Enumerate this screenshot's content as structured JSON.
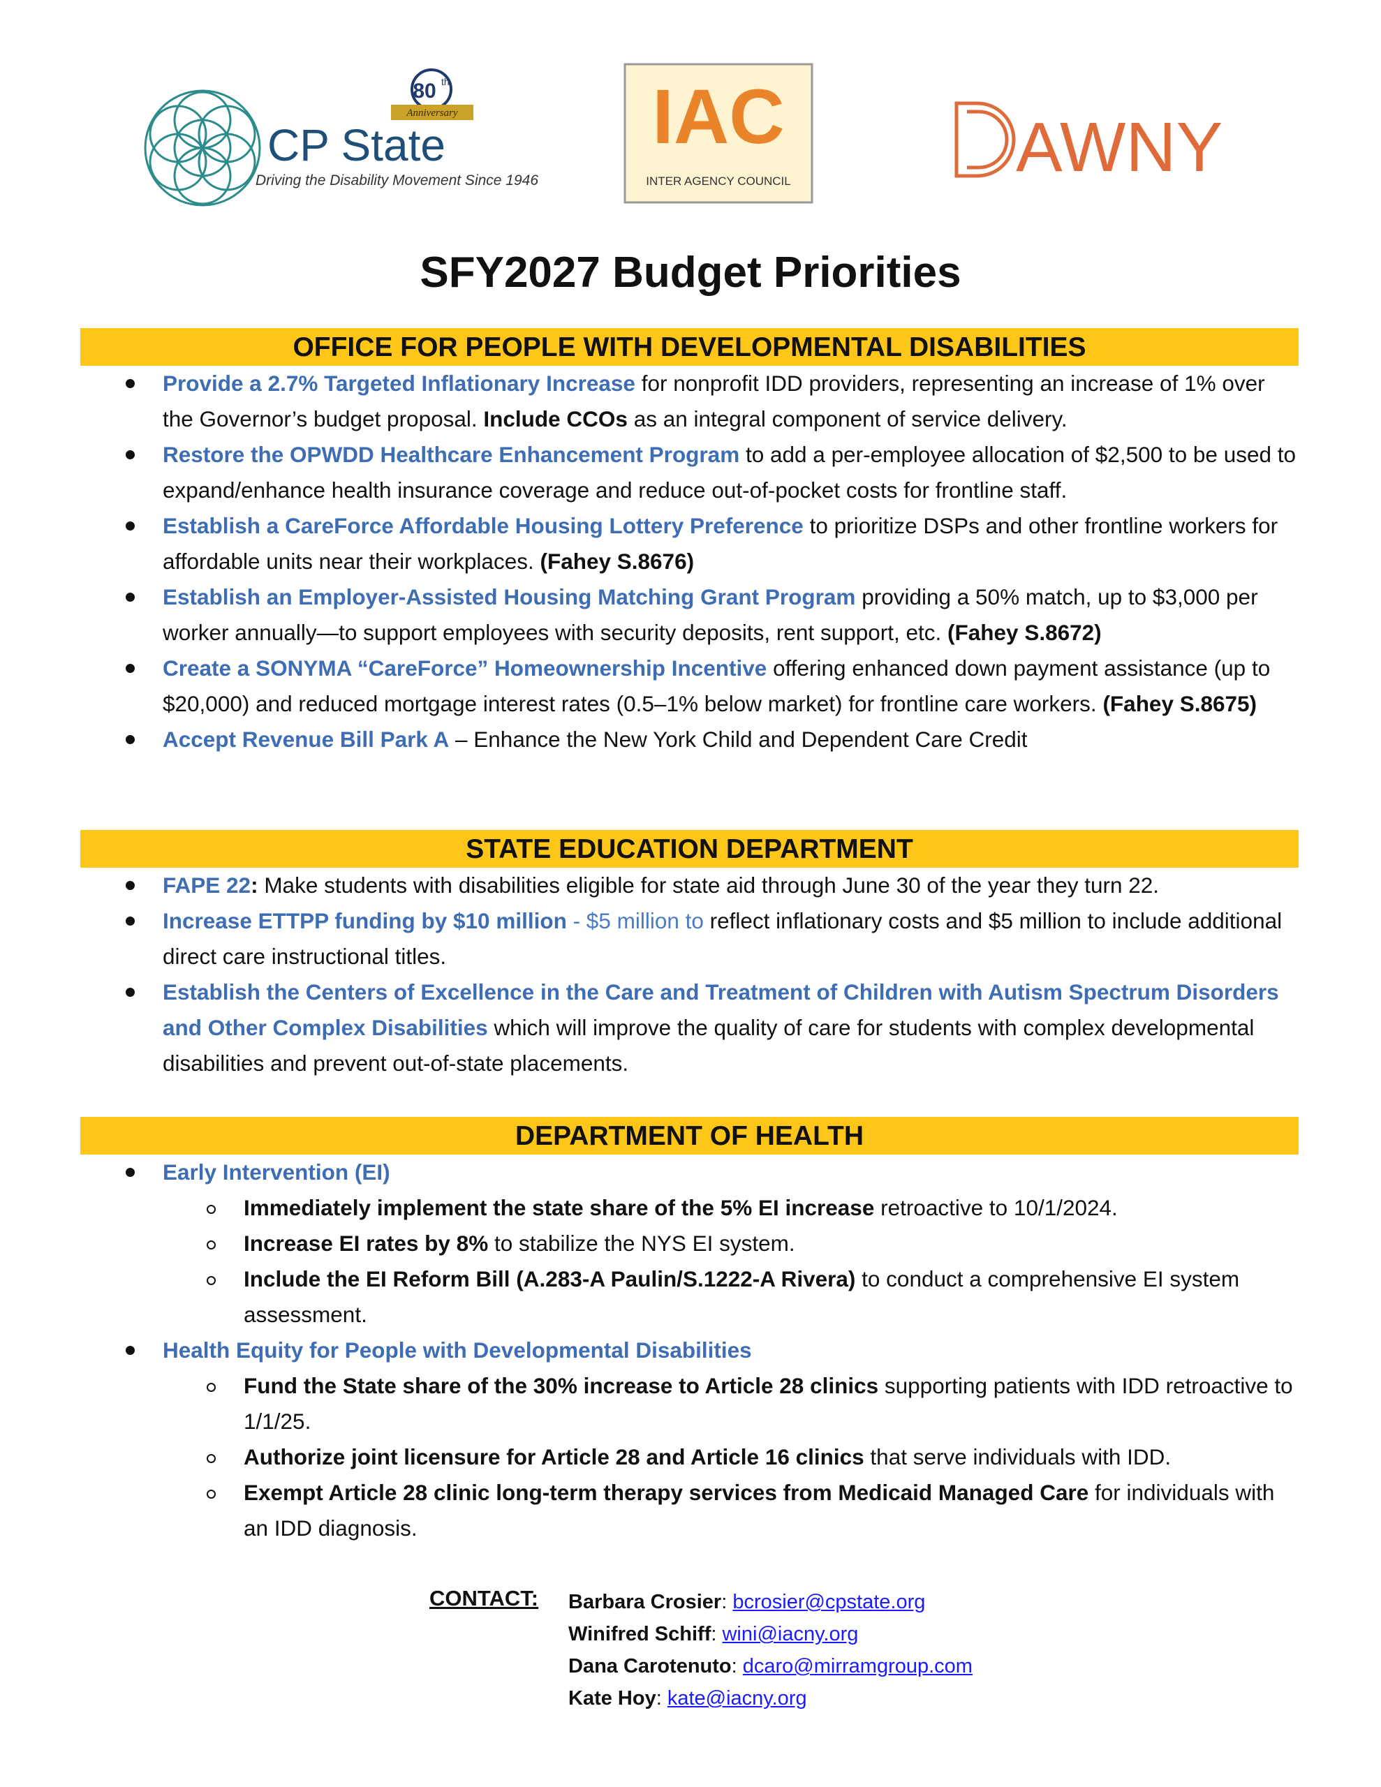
{
  "logos": {
    "cp_state": {
      "name": "CP State",
      "tagline": "Driving the Disability Movement Since 1946",
      "badge_number": "80",
      "badge_suffix": "th",
      "badge_text": "Anniversary"
    },
    "iac": {
      "name": "IAC",
      "subtitle": "INTER AGENCY COUNCIL"
    },
    "dawny": {
      "name": "AWNY"
    }
  },
  "title": "SFY2027 Budget Priorities",
  "sections": [
    {
      "header": "OFFICE FOR PEOPLE WITH DEVELOPMENTAL DISABILITIES",
      "items": [
        {
          "runs": [
            {
              "blue": "Provide a 2.7% Targeted Inflationary Increase"
            },
            {
              "plain": " for nonprofit IDD providers, representing an increase of 1% over the Governor’s budget proposal. "
            },
            {
              "bold": "Include CCOs"
            },
            {
              "plain": " as an integral component of service delivery."
            }
          ]
        },
        {
          "runs": [
            {
              "blue": "Restore the OPWDD Healthcare Enhancement Program"
            },
            {
              "plain": " to add a per-employee allocation of $2,500 to be used to expand/enhance health insurance coverage and reduce out-of-pocket costs for frontline staff."
            }
          ]
        },
        {
          "runs": [
            {
              "blue": "Establish a CareForce Affordable Housing Lottery Preference"
            },
            {
              "plain": " to prioritize DSPs and other frontline workers for affordable units near their workplaces. "
            },
            {
              "bold": "(Fahey S.8676)"
            }
          ]
        },
        {
          "runs": [
            {
              "blue": "Establish an Employer-Assisted Housing Matching Grant Program"
            },
            {
              "plain": " providing a 50% match, up to $3,000 per worker annually—to support employees with security deposits, rent support, etc. "
            },
            {
              "bold": "(Fahey S.8672)"
            }
          ]
        },
        {
          "runs": [
            {
              "blue": "Create a SONYMA “CareForce” Homeownership Incentive"
            },
            {
              "plain": " offering enhanced down payment assistance (up to $20,000) and reduced mortgage interest rates (0.5–1% below market) for frontline care workers. "
            },
            {
              "bold": "(Fahey S.8675)"
            }
          ]
        },
        {
          "runs": [
            {
              "blue": "Accept Revenue Bill Park A"
            },
            {
              "plain": " – Enhance the New York Child and Dependent Care Credit"
            }
          ]
        }
      ]
    },
    {
      "header": "STATE EDUCATION DEPARTMENT",
      "items": [
        {
          "runs": [
            {
              "blue": "FAPE 22"
            },
            {
              "bold": ":"
            },
            {
              "plain": " Make students with disabilities eligible for state aid through June 30 of the year they turn 22."
            }
          ]
        },
        {
          "runs": [
            {
              "blue": "Increase ETTPP funding by $10 million"
            },
            {
              "lightblue": " - $5 million to"
            },
            {
              "plain": " reflect inflationary costs and $5 million to include additional direct care instructional titles."
            }
          ]
        },
        {
          "runs": [
            {
              "blue": "Establish the Centers of Excellence in the Care and Treatment of Children with Autism Spectrum Disorders and Other Complex Disabilities"
            },
            {
              "plain": " which will improve the quality of care for students with complex developmental disabilities and prevent out-of-state placements."
            }
          ]
        }
      ]
    },
    {
      "header": "DEPARTMENT OF HEALTH",
      "items": [
        {
          "runs": [
            {
              "blue": "Early Intervention (EI)"
            }
          ],
          "sub": [
            [
              {
                "bold": "Immediately implement the state share of the 5% EI increase"
              },
              {
                "plain": " retroactive to 10/1/2024."
              }
            ],
            [
              {
                "bold": "Increase EI rates by 8%"
              },
              {
                "plain": " to stabilize the NYS EI system."
              }
            ],
            [
              {
                "bold": "Include the EI Reform Bill (A.283-A Paulin/S.1222-A Rivera)"
              },
              {
                "plain": " to conduct a comprehensive EI system assessment."
              }
            ]
          ]
        },
        {
          "runs": [
            {
              "blue": "Health Equity for People with Developmental Disabilities"
            }
          ],
          "sub": [
            [
              {
                "bold": "Fund the State share of the 30% increase to Article 28 clinics"
              },
              {
                "plain": " supporting patients with IDD retroactive to 1/1/25."
              }
            ],
            [
              {
                "bold": "Authorize joint licensure for Article 28 and Article 16 clinics"
              },
              {
                "plain": " that serve individuals with IDD."
              }
            ],
            [
              {
                "bold": "Exempt Article 28 clinic long-term therapy services from Medicaid Managed Care"
              },
              {
                "plain": " for individuals with an IDD diagnosis."
              }
            ]
          ]
        }
      ]
    }
  ],
  "contact": {
    "label": "CONTACT:",
    "people": [
      {
        "name": "Barbara Crosier",
        "email": "bcrosier@cpstate.org"
      },
      {
        "name": "Winifred Schiff",
        "email": "wini@iacny.org"
      },
      {
        "name": "Dana Carotenuto",
        "email": "dcaro@mirramgroup.com"
      },
      {
        "name": "Kate Hoy",
        "email": "kate@iacny.org"
      }
    ]
  }
}
